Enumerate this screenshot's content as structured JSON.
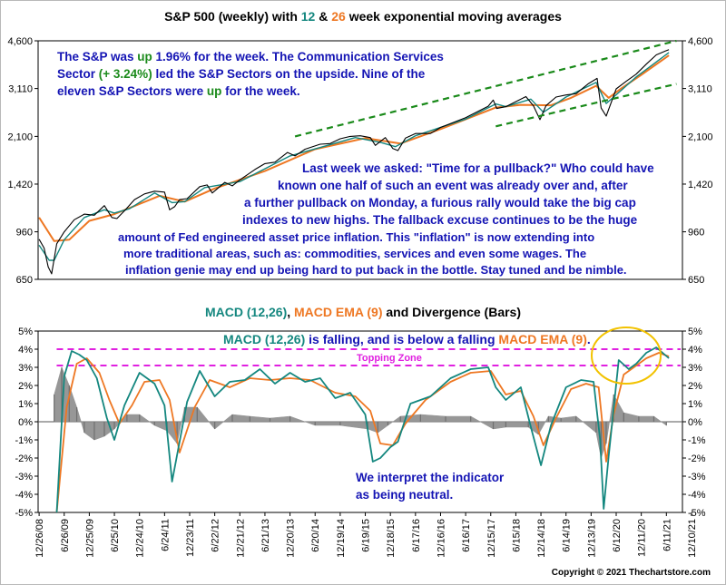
{
  "colors": {
    "ema12": "#14877f",
    "ema26": "#ee7722",
    "price": "#000000",
    "trend": "#1a8a1a",
    "zone": "#e020e0",
    "hist": "#8c8c8c",
    "note": "#1414b4",
    "circle": "#f2c200"
  },
  "top_title": {
    "prefix": "S&P 500 (weekly) with ",
    "n12": "12",
    "amp": " & ",
    "n26": "26",
    "suffix": " week exponential moving averages"
  },
  "top_note": {
    "l1a": "The S&P was ",
    "l1b": "up",
    "l1c": " 1.96% for the week. The Communication Services",
    "l2a": "Sector ",
    "l2b": "(+ 3.24%)",
    "l2c": " led the S&P Sectors on the upside. Nine of the",
    "l3a": "eleven S&P Sectors were ",
    "l3b": "up",
    "l3c": " for the week."
  },
  "mid_note": [
    "Last week we asked: \"Time for a pullback?\"  Who could have",
    "known one half of such an event was already over and, after",
    "a further pullback on Monday, a furious rally would take the big cap",
    "indexes to new highs.  The fallback excuse continues to be the huge",
    "amount of Fed engineered asset price inflation.  This \"inflation\" is now extending into",
    "more traditional areas, such as: commodities, services and even some wages.  The",
    "inflation genie may end up being hard to put back in the bottle.  Stay tuned and be nimble."
  ],
  "macd_title": {
    "a": "MACD (12,26)",
    "b": ", ",
    "c": "MACD EMA (9)",
    "d": " and Divergence (Bars)"
  },
  "macd_note": {
    "a": "MACD (12,26)",
    "b": " is falling, and is below a falling ",
    "c": "MACD EMA (9)",
    "d": "."
  },
  "topping_zone": "Topping Zone",
  "neutral_note": [
    "We interpret the indicator",
    "as being neutral."
  ],
  "copyright": "Copyright © 2021 Thechartstore.com",
  "chart_data": [
    {
      "type": "line",
      "title": "S&P 500 (weekly) with 12 & 26 week exponential moving averages",
      "y_scale": "log",
      "ylim": [
        650,
        4600
      ],
      "y_ticks": [
        650,
        960,
        1420,
        2100,
        3110,
        4600
      ],
      "y_tick_labels": [
        "650",
        "960",
        "1,420",
        "2,100",
        "3,110",
        "4,600"
      ],
      "xlim": [
        2008.98,
        2021.82
      ],
      "series": [
        {
          "name": "S&P 500",
          "x": [
            2009.0,
            2009.1,
            2009.18,
            2009.25,
            2009.35,
            2009.5,
            2009.7,
            2009.9,
            2010.1,
            2010.3,
            2010.45,
            2010.55,
            2010.7,
            2010.9,
            2011.1,
            2011.3,
            2011.5,
            2011.6,
            2011.7,
            2011.8,
            2011.95,
            2012.2,
            2012.35,
            2012.45,
            2012.7,
            2012.85,
            2013.0,
            2013.3,
            2013.5,
            2013.7,
            2013.95,
            2014.1,
            2014.3,
            2014.6,
            2014.8,
            2015.0,
            2015.2,
            2015.4,
            2015.6,
            2015.7,
            2015.9,
            2016.05,
            2016.15,
            2016.3,
            2016.5,
            2016.8,
            2017.0,
            2017.5,
            2017.95,
            2018.05,
            2018.12,
            2018.3,
            2018.7,
            2018.85,
            2018.98,
            2019.1,
            2019.3,
            2019.5,
            2019.7,
            2019.95,
            2020.12,
            2020.2,
            2020.3,
            2020.5,
            2020.7,
            2020.9,
            2021.1,
            2021.3,
            2021.48,
            2021.55
          ],
          "values": [
            903,
            840,
            720,
            680,
            870,
            960,
            1060,
            1110,
            1100,
            1190,
            1080,
            1070,
            1140,
            1250,
            1310,
            1340,
            1330,
            1150,
            1180,
            1250,
            1260,
            1390,
            1410,
            1320,
            1440,
            1400,
            1470,
            1600,
            1680,
            1700,
            1840,
            1790,
            1890,
            1970,
            1980,
            2060,
            2100,
            2110,
            2080,
            1950,
            2080,
            1900,
            1870,
            2070,
            2150,
            2150,
            2260,
            2450,
            2690,
            2830,
            2640,
            2680,
            2910,
            2700,
            2410,
            2700,
            2900,
            2950,
            2980,
            3240,
            3380,
            2650,
            2480,
            3100,
            3300,
            3500,
            3800,
            4100,
            4230,
            4280
          ]
        },
        {
          "name": "12 week EMA",
          "x": [
            2009.0,
            2009.2,
            2009.3,
            2009.5,
            2009.9,
            2010.3,
            2010.5,
            2010.8,
            2011.3,
            2011.65,
            2011.9,
            2012.3,
            2013.0,
            2014.0,
            2015.3,
            2015.8,
            2016.1,
            2016.5,
            2017.5,
            2018.1,
            2018.3,
            2018.8,
            2019.05,
            2019.5,
            2020.1,
            2020.3,
            2020.45,
            2020.9,
            2021.55
          ],
          "values": [
            860,
            760,
            760,
            900,
            1080,
            1150,
            1120,
            1160,
            1320,
            1220,
            1230,
            1380,
            1450,
            1790,
            2080,
            2000,
            1930,
            2110,
            2420,
            2740,
            2680,
            2850,
            2560,
            2900,
            3270,
            2750,
            2900,
            3420,
            4180
          ]
        },
        {
          "name": "26 week EMA",
          "x": [
            2009.0,
            2009.3,
            2009.6,
            2010.0,
            2010.5,
            2011.4,
            2011.9,
            2012.5,
            2013.5,
            2014.5,
            2015.5,
            2016.2,
            2017.0,
            2018.1,
            2018.6,
            2019.2,
            2019.6,
            2020.1,
            2020.35,
            2020.6,
            2021.0,
            2021.55
          ],
          "values": [
            1080,
            890,
            900,
            1050,
            1110,
            1290,
            1230,
            1370,
            1580,
            1890,
            2070,
            1980,
            2230,
            2660,
            2720,
            2710,
            2880,
            3180,
            2880,
            3110,
            3480,
            4080
          ]
        },
        {
          "name": "Upper trend line",
          "x": [
            2014.1,
            2021.7
          ],
          "values": [
            2100,
            4600
          ]
        },
        {
          "name": "Lower trend line",
          "x": [
            2018.1,
            2021.7
          ],
          "values": [
            2280,
            3230
          ]
        }
      ]
    },
    {
      "type": "line",
      "title": "MACD (12,26), MACD EMA (9) and Divergence (Bars)",
      "ylim": [
        -5,
        5
      ],
      "y_ticks": [
        -5,
        -4,
        -3,
        -2,
        -1,
        0,
        1,
        2,
        3,
        4,
        5
      ],
      "y_tick_labels": [
        "-5%",
        "-4%",
        "-3%",
        "-2%",
        "-1%",
        "0%",
        "1%",
        "2%",
        "3%",
        "4%",
        "5%"
      ],
      "x_tick_labels": [
        "12/26/08",
        "6/26/09",
        "12/25/09",
        "6/25/10",
        "12/24/10",
        "6/24/11",
        "12/23/11",
        "6/22/12",
        "12/21/12",
        "6/21/13",
        "12/20/13",
        "6/20/14",
        "12/19/14",
        "6/19/15",
        "12/18/15",
        "6/17/16",
        "12/16/16",
        "6/16/17",
        "12/15/17",
        "6/15/18",
        "12/14/18",
        "6/14/19",
        "12/13/19",
        "6/12/20",
        "12/11/20",
        "6/11/21",
        "12/10/21"
      ],
      "reference_lines": [
        {
          "label": "Topping Zone",
          "values": [
            4.0,
            3.1
          ]
        }
      ],
      "series": [
        {
          "name": "MACD (12,26)",
          "x": [
            2009.35,
            2009.5,
            2009.65,
            2009.8,
            2009.95,
            2010.15,
            2010.35,
            2010.5,
            2010.7,
            2011.0,
            2011.3,
            2011.5,
            2011.65,
            2011.95,
            2012.2,
            2012.5,
            2012.8,
            2013.1,
            2013.4,
            2013.7,
            2014.0,
            2014.3,
            2014.6,
            2014.9,
            2015.2,
            2015.5,
            2015.65,
            2015.8,
            2016.0,
            2016.15,
            2016.4,
            2016.8,
            2017.2,
            2017.6,
            2017.95,
            2018.1,
            2018.3,
            2018.6,
            2018.8,
            2019.0,
            2019.2,
            2019.5,
            2019.8,
            2020.05,
            2020.18,
            2020.25,
            2020.35,
            2020.55,
            2020.75,
            2020.9,
            2021.1,
            2021.3,
            2021.55
          ],
          "values": [
            -5,
            2.5,
            3.9,
            3.7,
            3.4,
            2.4,
            0.2,
            -1.0,
            0.9,
            2.7,
            2.1,
            0.9,
            -3.3,
            1.1,
            2.8,
            1.4,
            2.2,
            2.3,
            2.9,
            2.1,
            2.7,
            2.2,
            2.4,
            1.3,
            1.6,
            0.4,
            -2.2,
            -2.0,
            -1.4,
            -1.1,
            1.0,
            1.4,
            2.4,
            2.9,
            3.0,
            1.9,
            1.2,
            1.9,
            -0.3,
            -2.4,
            -0.2,
            1.9,
            2.3,
            2.2,
            -1.0,
            -4.8,
            -1.9,
            3.4,
            2.9,
            3.2,
            3.8,
            4.1,
            3.5
          ]
        },
        {
          "name": "MACD EMA (9)",
          "x": [
            2009.35,
            2009.55,
            2009.75,
            2009.95,
            2010.2,
            2010.4,
            2010.6,
            2010.85,
            2011.1,
            2011.4,
            2011.6,
            2011.8,
            2012.1,
            2012.4,
            2012.8,
            2013.2,
            2013.6,
            2014.0,
            2014.4,
            2014.9,
            2015.3,
            2015.6,
            2015.8,
            2016.05,
            2016.3,
            2016.7,
            2017.2,
            2017.6,
            2018.0,
            2018.3,
            2018.6,
            2018.85,
            2019.05,
            2019.3,
            2019.6,
            2019.9,
            2020.15,
            2020.3,
            2020.45,
            2020.65,
            2020.85,
            2021.1,
            2021.35,
            2021.55
          ],
          "values": [
            -5,
            0.8,
            3.2,
            3.5,
            2.7,
            1.2,
            -0.1,
            0.9,
            2.2,
            2.3,
            1.2,
            -1.7,
            0.8,
            2.3,
            1.9,
            2.4,
            2.3,
            2.4,
            2.3,
            1.6,
            1.4,
            0.6,
            -1.2,
            -1.3,
            -0.1,
            1.2,
            2.2,
            2.7,
            2.8,
            1.5,
            1.7,
            0.3,
            -1.3,
            0.2,
            1.8,
            2.1,
            1.9,
            -2.2,
            0.4,
            2.6,
            3.0,
            3.5,
            3.8,
            3.6
          ]
        },
        {
          "name": "Divergence (Bars)",
          "x": [
            2009.3,
            2009.45,
            2009.6,
            2009.75,
            2009.9,
            2010.1,
            2010.3,
            2010.5,
            2010.75,
            2011.0,
            2011.3,
            2011.55,
            2011.75,
            2011.9,
            2012.15,
            2012.5,
            2012.85,
            2013.2,
            2013.6,
            2014.0,
            2014.5,
            2015.0,
            2015.55,
            2015.75,
            2015.95,
            2016.2,
            2016.6,
            2017.1,
            2017.6,
            2018.05,
            2018.3,
            2018.75,
            2018.95,
            2019.15,
            2019.4,
            2019.7,
            2020.1,
            2020.2,
            2020.3,
            2020.45,
            2020.65,
            2020.95,
            2021.25,
            2021.5
          ],
          "values": [
            1.5,
            3.0,
            2.0,
            0.8,
            -0.6,
            -1.0,
            -0.8,
            -0.4,
            0.4,
            0.4,
            -0.2,
            -0.5,
            -1.2,
            0.8,
            0.8,
            -0.4,
            0.4,
            0.3,
            0.2,
            0.3,
            -0.2,
            -0.2,
            -0.4,
            -0.6,
            -0.2,
            0.3,
            0.4,
            0.3,
            0.3,
            -0.4,
            -0.3,
            -0.3,
            -0.7,
            0.3,
            0.2,
            0.3,
            -0.6,
            -2.0,
            -1.2,
            1.5,
            0.5,
            0.3,
            0.3,
            -0.2
          ]
        }
      ]
    }
  ]
}
